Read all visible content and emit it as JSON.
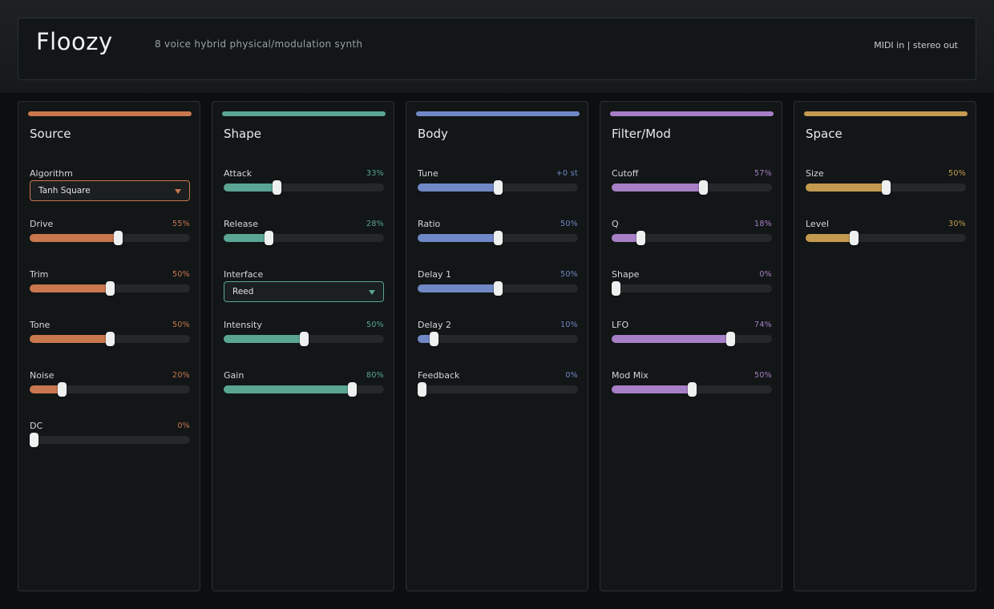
{
  "app": {
    "title": "Floozy",
    "subtitle": "8 voice hybrid physical/modulation synth",
    "io_status": "MIDI in | stereo out"
  },
  "panels": [
    {
      "id": "source",
      "title": "Source",
      "color": "#c8774e",
      "controls": [
        {
          "type": "select",
          "label": "Algorithm",
          "value": "Tanh Square"
        },
        {
          "type": "slider",
          "label": "Drive",
          "display": "55%",
          "level": 0.55
        },
        {
          "type": "slider",
          "label": "Trim",
          "display": "50%",
          "level": 0.5
        },
        {
          "type": "slider",
          "label": "Tone",
          "display": "50%",
          "level": 0.5
        },
        {
          "type": "slider",
          "label": "Noise",
          "display": "20%",
          "level": 0.2
        },
        {
          "type": "slider",
          "label": "DC",
          "display": "0%",
          "level": 0.0
        }
      ]
    },
    {
      "id": "shape",
      "title": "Shape",
      "color": "#5aa594",
      "controls": [
        {
          "type": "slider",
          "label": "Attack",
          "display": "33%",
          "level": 0.33
        },
        {
          "type": "slider",
          "label": "Release",
          "display": "28%",
          "level": 0.28
        },
        {
          "type": "select",
          "label": "Interface",
          "value": "Reed"
        },
        {
          "type": "slider",
          "label": "Intensity",
          "display": "50%",
          "level": 0.5
        },
        {
          "type": "slider",
          "label": "Gain",
          "display": "80%",
          "level": 0.8
        }
      ]
    },
    {
      "id": "body",
      "title": "Body",
      "color": "#7188c6",
      "controls": [
        {
          "type": "slider",
          "label": "Tune",
          "display": "+0 st",
          "level": 0.5
        },
        {
          "type": "slider",
          "label": "Ratio",
          "display": "50%",
          "level": 0.5
        },
        {
          "type": "slider",
          "label": "Delay 1",
          "display": "50%",
          "level": 0.5
        },
        {
          "type": "slider",
          "label": "Delay 2",
          "display": "10%",
          "level": 0.1
        },
        {
          "type": "slider",
          "label": "Feedback",
          "display": "0%",
          "level": 0.0
        }
      ]
    },
    {
      "id": "filter-mod",
      "title": "Filter/Mod",
      "color": "#a77fc6",
      "controls": [
        {
          "type": "slider",
          "label": "Cutoff",
          "display": "57%",
          "level": 0.57
        },
        {
          "type": "slider",
          "label": "Q",
          "display": "18%",
          "level": 0.18
        },
        {
          "type": "slider",
          "label": "Shape",
          "display": "0%",
          "level": 0.0
        },
        {
          "type": "slider",
          "label": "LFO",
          "display": "74%",
          "level": 0.74
        },
        {
          "type": "slider",
          "label": "Mod Mix",
          "display": "50%",
          "level": 0.5
        }
      ]
    },
    {
      "id": "space",
      "title": "Space",
      "color": "#c49a50",
      "controls": [
        {
          "type": "slider",
          "label": "Size",
          "display": "50%",
          "level": 0.5
        },
        {
          "type": "slider",
          "label": "Level",
          "display": "30%",
          "level": 0.3
        }
      ]
    }
  ]
}
